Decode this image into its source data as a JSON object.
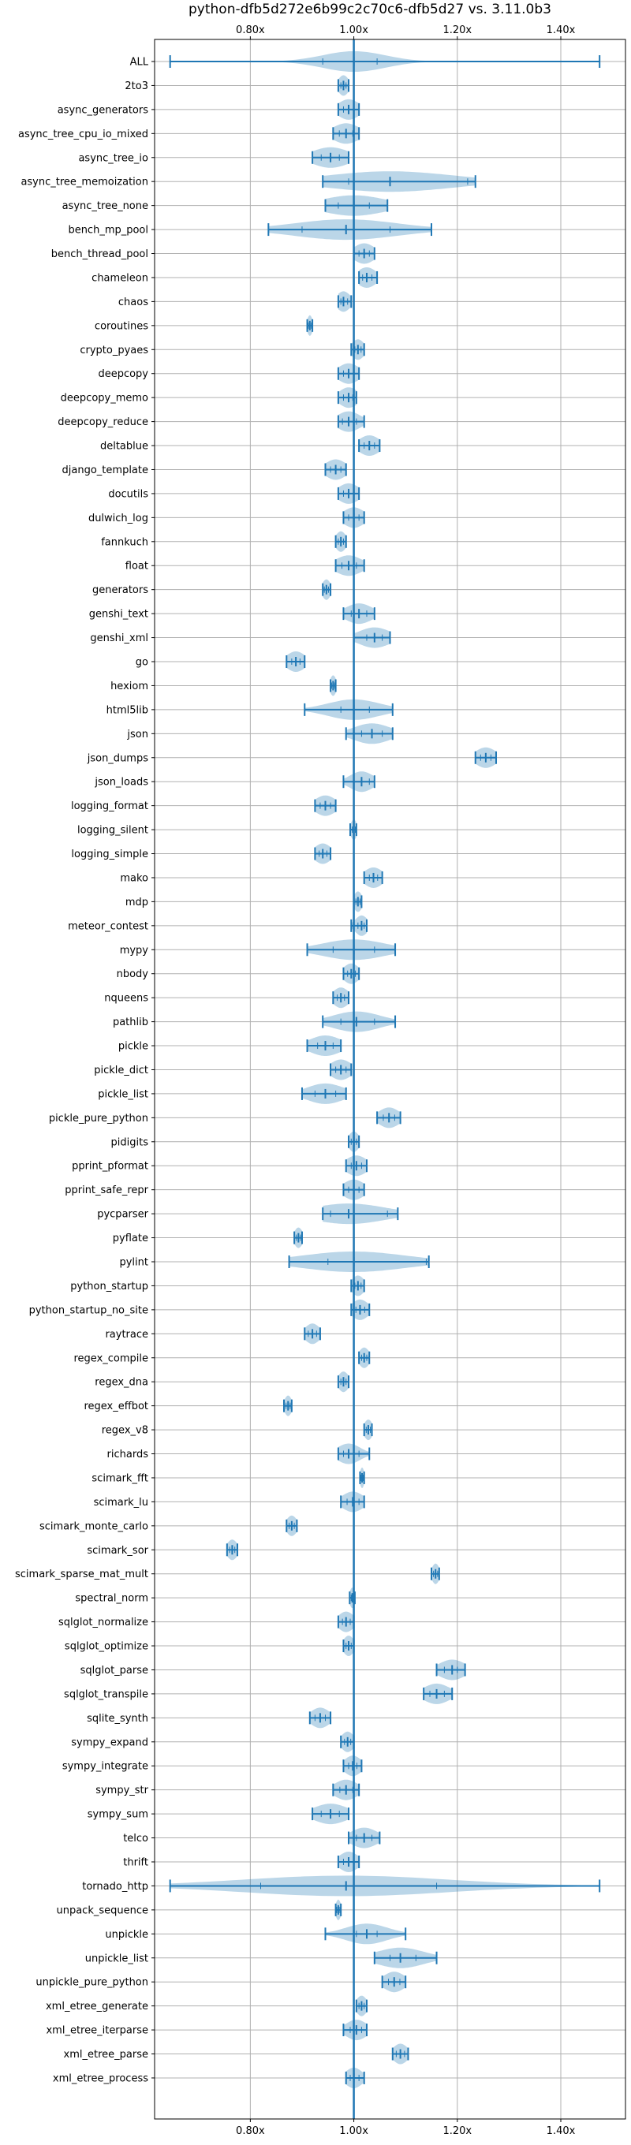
{
  "chart_data": {
    "type": "violin",
    "orientation": "horizontal",
    "title": "python-dfb5d272e6b99c2c70c6-dfb5d27 vs. 3.11.0b3",
    "x_ticks": [
      {
        "value": 0.8,
        "label": "0.80x"
      },
      {
        "value": 1.0,
        "label": "1.00x"
      },
      {
        "value": 1.2,
        "label": "1.20x"
      },
      {
        "value": 1.4,
        "label": "1.40x"
      }
    ],
    "xlim": [
      0.615,
      1.525
    ],
    "reference_x": 1.0,
    "grid": true,
    "benchmarks": [
      {
        "name": "ALL",
        "min": 0.645,
        "max": 1.475,
        "median": 1.0,
        "q1": 0.94,
        "q3": 1.045,
        "spread": 0.06
      },
      {
        "name": "2to3",
        "min": 0.97,
        "max": 0.99,
        "median": 0.98,
        "q1": 0.975,
        "q3": 0.985,
        "spread": 0.01
      },
      {
        "name": "async_generators",
        "min": 0.97,
        "max": 1.01,
        "median": 0.99,
        "q1": 0.98,
        "q3": 1.0,
        "spread": 0.02
      },
      {
        "name": "async_tree_cpu_io_mixed",
        "min": 0.96,
        "max": 1.01,
        "median": 0.985,
        "q1": 0.972,
        "q3": 0.998,
        "spread": 0.025
      },
      {
        "name": "async_tree_io",
        "min": 0.92,
        "max": 0.99,
        "median": 0.955,
        "q1": 0.937,
        "q3": 0.972,
        "spread": 0.035
      },
      {
        "name": "async_tree_memoization",
        "min": 0.94,
        "max": 1.235,
        "median": 1.07,
        "q1": 0.99,
        "q3": 1.22,
        "spread": 0.12
      },
      {
        "name": "async_tree_none",
        "min": 0.945,
        "max": 1.065,
        "median": 1.0,
        "q1": 0.97,
        "q3": 1.03,
        "spread": 0.06
      },
      {
        "name": "bench_mp_pool",
        "min": 0.835,
        "max": 1.15,
        "median": 0.985,
        "q1": 0.9,
        "q3": 1.07,
        "spread": 0.1
      },
      {
        "name": "bench_thread_pool",
        "min": 1.0,
        "max": 1.04,
        "median": 1.02,
        "q1": 1.01,
        "q3": 1.03,
        "spread": 0.02
      },
      {
        "name": "chameleon",
        "min": 1.01,
        "max": 1.045,
        "median": 1.025,
        "q1": 1.017,
        "q3": 1.035,
        "spread": 0.018
      },
      {
        "name": "chaos",
        "min": 0.97,
        "max": 0.995,
        "median": 0.98,
        "q1": 0.975,
        "q3": 0.988,
        "spread": 0.013
      },
      {
        "name": "coroutines",
        "min": 0.91,
        "max": 0.92,
        "median": 0.915,
        "q1": 0.912,
        "q3": 0.918,
        "spread": 0.005
      },
      {
        "name": "crypto_pyaes",
        "min": 0.995,
        "max": 1.02,
        "median": 1.008,
        "q1": 1.002,
        "q3": 1.014,
        "spread": 0.012
      },
      {
        "name": "deepcopy",
        "min": 0.97,
        "max": 1.01,
        "median": 0.99,
        "q1": 0.98,
        "q3": 1.0,
        "spread": 0.02
      },
      {
        "name": "deepcopy_memo",
        "min": 0.97,
        "max": 1.005,
        "median": 0.99,
        "q1": 0.98,
        "q3": 0.998,
        "spread": 0.018
      },
      {
        "name": "deepcopy_reduce",
        "min": 0.97,
        "max": 1.02,
        "median": 0.99,
        "q1": 0.978,
        "q3": 1.005,
        "spread": 0.022
      },
      {
        "name": "deltablue",
        "min": 1.01,
        "max": 1.05,
        "median": 1.03,
        "q1": 1.02,
        "q3": 1.04,
        "spread": 0.02
      },
      {
        "name": "django_template",
        "min": 0.945,
        "max": 0.985,
        "median": 0.965,
        "q1": 0.955,
        "q3": 0.975,
        "spread": 0.02
      },
      {
        "name": "docutils",
        "min": 0.97,
        "max": 1.01,
        "median": 0.99,
        "q1": 0.98,
        "q3": 1.0,
        "spread": 0.02
      },
      {
        "name": "dulwich_log",
        "min": 0.98,
        "max": 1.02,
        "median": 1.0,
        "q1": 0.99,
        "q3": 1.01,
        "spread": 0.02
      },
      {
        "name": "fannkuch",
        "min": 0.965,
        "max": 0.985,
        "median": 0.975,
        "q1": 0.97,
        "q3": 0.98,
        "spread": 0.01
      },
      {
        "name": "float",
        "min": 0.965,
        "max": 1.02,
        "median": 0.99,
        "q1": 0.977,
        "q3": 1.005,
        "spread": 0.025
      },
      {
        "name": "generators",
        "min": 0.94,
        "max": 0.955,
        "median": 0.947,
        "q1": 0.943,
        "q3": 0.951,
        "spread": 0.008
      },
      {
        "name": "genshi_text",
        "min": 0.98,
        "max": 1.04,
        "median": 1.01,
        "q1": 0.995,
        "q3": 1.025,
        "spread": 0.025
      },
      {
        "name": "genshi_xml",
        "min": 1.0,
        "max": 1.07,
        "median": 1.04,
        "q1": 1.025,
        "q3": 1.055,
        "spread": 0.03
      },
      {
        "name": "go",
        "min": 0.87,
        "max": 0.905,
        "median": 0.888,
        "q1": 0.88,
        "q3": 0.896,
        "spread": 0.018
      },
      {
        "name": "hexiom",
        "min": 0.955,
        "max": 0.965,
        "median": 0.96,
        "q1": 0.957,
        "q3": 0.963,
        "spread": 0.006
      },
      {
        "name": "html5lib",
        "min": 0.905,
        "max": 1.075,
        "median": 1.0,
        "q1": 0.975,
        "q3": 1.03,
        "spread": 0.05
      },
      {
        "name": "json",
        "min": 0.985,
        "max": 1.075,
        "median": 1.035,
        "q1": 1.015,
        "q3": 1.055,
        "spread": 0.035
      },
      {
        "name": "json_dumps",
        "min": 1.235,
        "max": 1.275,
        "median": 1.255,
        "q1": 1.245,
        "q3": 1.265,
        "spread": 0.02
      },
      {
        "name": "json_loads",
        "min": 0.98,
        "max": 1.04,
        "median": 1.015,
        "q1": 1.0,
        "q3": 1.03,
        "spread": 0.022
      },
      {
        "name": "logging_format",
        "min": 0.925,
        "max": 0.965,
        "median": 0.945,
        "q1": 0.935,
        "q3": 0.955,
        "spread": 0.02
      },
      {
        "name": "logging_silent",
        "min": 0.993,
        "max": 1.005,
        "median": 1.0,
        "q1": 0.997,
        "q3": 1.003,
        "spread": 0.006
      },
      {
        "name": "logging_simple",
        "min": 0.925,
        "max": 0.955,
        "median": 0.94,
        "q1": 0.933,
        "q3": 0.948,
        "spread": 0.016
      },
      {
        "name": "mako",
        "min": 1.02,
        "max": 1.055,
        "median": 1.038,
        "q1": 1.03,
        "q3": 1.046,
        "spread": 0.018
      },
      {
        "name": "mdp",
        "min": 1.0,
        "max": 1.015,
        "median": 1.008,
        "q1": 1.004,
        "q3": 1.012,
        "spread": 0.008
      },
      {
        "name": "meteor_contest",
        "min": 0.995,
        "max": 1.025,
        "median": 1.015,
        "q1": 1.008,
        "q3": 1.02,
        "spread": 0.012
      },
      {
        "name": "mypy",
        "min": 0.91,
        "max": 1.08,
        "median": 1.0,
        "q1": 0.96,
        "q3": 1.04,
        "spread": 0.06
      },
      {
        "name": "nbody",
        "min": 0.98,
        "max": 1.01,
        "median": 0.995,
        "q1": 0.988,
        "q3": 1.003,
        "spread": 0.015
      },
      {
        "name": "nqueens",
        "min": 0.96,
        "max": 0.99,
        "median": 0.975,
        "q1": 0.968,
        "q3": 0.982,
        "spread": 0.015
      },
      {
        "name": "pathlib",
        "min": 0.94,
        "max": 1.08,
        "median": 1.005,
        "q1": 0.975,
        "q3": 1.04,
        "spread": 0.045
      },
      {
        "name": "pickle",
        "min": 0.91,
        "max": 0.975,
        "median": 0.945,
        "q1": 0.93,
        "q3": 0.96,
        "spread": 0.03
      },
      {
        "name": "pickle_dict",
        "min": 0.955,
        "max": 0.995,
        "median": 0.975,
        "q1": 0.965,
        "q3": 0.985,
        "spread": 0.02
      },
      {
        "name": "pickle_list",
        "min": 0.9,
        "max": 0.985,
        "median": 0.945,
        "q1": 0.925,
        "q3": 0.965,
        "spread": 0.035
      },
      {
        "name": "pickle_pure_python",
        "min": 1.045,
        "max": 1.09,
        "median": 1.068,
        "q1": 1.057,
        "q3": 1.079,
        "spread": 0.02
      },
      {
        "name": "pidigits",
        "min": 0.99,
        "max": 1.01,
        "median": 1.0,
        "q1": 0.995,
        "q3": 1.005,
        "spread": 0.01
      },
      {
        "name": "pprint_pformat",
        "min": 0.985,
        "max": 1.025,
        "median": 1.005,
        "q1": 0.995,
        "q3": 1.015,
        "spread": 0.02
      },
      {
        "name": "pprint_safe_repr",
        "min": 0.98,
        "max": 1.02,
        "median": 1.0,
        "q1": 0.99,
        "q3": 1.01,
        "spread": 0.02
      },
      {
        "name": "pycparser",
        "min": 0.94,
        "max": 1.085,
        "median": 0.99,
        "q1": 0.955,
        "q3": 1.065,
        "spread": 0.07
      },
      {
        "name": "pyflate",
        "min": 0.885,
        "max": 0.9,
        "median": 0.893,
        "q1": 0.889,
        "q3": 0.897,
        "spread": 0.008
      },
      {
        "name": "pylint",
        "min": 0.875,
        "max": 1.145,
        "median": 1.0,
        "q1": 0.95,
        "q3": 1.14,
        "spread": 0.1
      },
      {
        "name": "python_startup",
        "min": 0.995,
        "max": 1.02,
        "median": 1.008,
        "q1": 1.002,
        "q3": 1.014,
        "spread": 0.012
      },
      {
        "name": "python_startup_no_site",
        "min": 0.995,
        "max": 1.03,
        "median": 1.012,
        "q1": 1.004,
        "q3": 1.021,
        "spread": 0.016
      },
      {
        "name": "raytrace",
        "min": 0.905,
        "max": 0.935,
        "median": 0.92,
        "q1": 0.912,
        "q3": 0.928,
        "spread": 0.014
      },
      {
        "name": "regex_compile",
        "min": 1.01,
        "max": 1.03,
        "median": 1.02,
        "q1": 1.015,
        "q3": 1.025,
        "spread": 0.01
      },
      {
        "name": "regex_dna",
        "min": 0.97,
        "max": 0.99,
        "median": 0.98,
        "q1": 0.975,
        "q3": 0.985,
        "spread": 0.01
      },
      {
        "name": "regex_effbot",
        "min": 0.865,
        "max": 0.88,
        "median": 0.873,
        "q1": 0.869,
        "q3": 0.877,
        "spread": 0.007
      },
      {
        "name": "regex_v8",
        "min": 1.02,
        "max": 1.035,
        "median": 1.028,
        "q1": 1.024,
        "q3": 1.032,
        "spread": 0.008
      },
      {
        "name": "richards",
        "min": 0.97,
        "max": 1.03,
        "median": 0.99,
        "q1": 0.98,
        "q3": 1.01,
        "spread": 0.022
      },
      {
        "name": "scimark_fft",
        "min": 1.012,
        "max": 1.02,
        "median": 1.016,
        "q1": 1.014,
        "q3": 1.018,
        "spread": 0.004
      },
      {
        "name": "scimark_lu",
        "min": 0.975,
        "max": 1.02,
        "median": 0.998,
        "q1": 0.987,
        "q3": 1.01,
        "spread": 0.02
      },
      {
        "name": "scimark_monte_carlo",
        "min": 0.87,
        "max": 0.89,
        "median": 0.88,
        "q1": 0.875,
        "q3": 0.885,
        "spread": 0.01
      },
      {
        "name": "scimark_sor",
        "min": 0.755,
        "max": 0.775,
        "median": 0.765,
        "q1": 0.76,
        "q3": 0.77,
        "spread": 0.01
      },
      {
        "name": "scimark_sparse_mat_mult",
        "min": 1.15,
        "max": 1.165,
        "median": 1.158,
        "q1": 1.154,
        "q3": 1.162,
        "spread": 0.007
      },
      {
        "name": "spectral_norm",
        "min": 0.992,
        "max": 1.002,
        "median": 0.997,
        "q1": 0.995,
        "q3": 0.999,
        "spread": 0.005
      },
      {
        "name": "sqlglot_normalize",
        "min": 0.97,
        "max": 1.0,
        "median": 0.985,
        "q1": 0.978,
        "q3": 0.993,
        "spread": 0.015
      },
      {
        "name": "sqlglot_optimize",
        "min": 0.98,
        "max": 1.0,
        "median": 0.99,
        "q1": 0.985,
        "q3": 0.995,
        "spread": 0.01
      },
      {
        "name": "sqlglot_parse",
        "min": 1.16,
        "max": 1.215,
        "median": 1.19,
        "q1": 1.175,
        "q3": 1.2,
        "spread": 0.025
      },
      {
        "name": "sqlglot_transpile",
        "min": 1.135,
        "max": 1.19,
        "median": 1.16,
        "q1": 1.147,
        "q3": 1.175,
        "spread": 0.025
      },
      {
        "name": "sqlite_synth",
        "min": 0.915,
        "max": 0.955,
        "median": 0.935,
        "q1": 0.925,
        "q3": 0.945,
        "spread": 0.018
      },
      {
        "name": "sympy_expand",
        "min": 0.975,
        "max": 1.0,
        "median": 0.988,
        "q1": 0.982,
        "q3": 0.994,
        "spread": 0.012
      },
      {
        "name": "sympy_integrate",
        "min": 0.98,
        "max": 1.015,
        "median": 0.998,
        "q1": 0.99,
        "q3": 1.006,
        "spread": 0.016
      },
      {
        "name": "sympy_str",
        "min": 0.96,
        "max": 1.01,
        "median": 0.985,
        "q1": 0.973,
        "q3": 0.998,
        "spread": 0.022
      },
      {
        "name": "sympy_sum",
        "min": 0.92,
        "max": 0.99,
        "median": 0.955,
        "q1": 0.937,
        "q3": 0.972,
        "spread": 0.032
      },
      {
        "name": "telco",
        "min": 0.99,
        "max": 1.05,
        "median": 1.02,
        "q1": 1.005,
        "q3": 1.035,
        "spread": 0.025
      },
      {
        "name": "thrift",
        "min": 0.97,
        "max": 1.01,
        "median": 0.99,
        "q1": 0.98,
        "q3": 1.0,
        "spread": 0.018
      },
      {
        "name": "tornado_http",
        "min": 0.645,
        "max": 1.475,
        "median": 0.985,
        "q1": 0.82,
        "q3": 1.16,
        "spread": 0.2
      },
      {
        "name": "unpack_sequence",
        "min": 0.965,
        "max": 0.975,
        "median": 0.97,
        "q1": 0.967,
        "q3": 0.973,
        "spread": 0.005
      },
      {
        "name": "unpickle",
        "min": 0.945,
        "max": 1.1,
        "median": 1.025,
        "q1": 1.005,
        "q3": 1.045,
        "spread": 0.04
      },
      {
        "name": "unpickle_list",
        "min": 1.04,
        "max": 1.16,
        "median": 1.09,
        "q1": 1.07,
        "q3": 1.12,
        "spread": 0.045
      },
      {
        "name": "unpickle_pure_python",
        "min": 1.055,
        "max": 1.1,
        "median": 1.078,
        "q1": 1.067,
        "q3": 1.089,
        "spread": 0.02
      },
      {
        "name": "xml_etree_generate",
        "min": 1.005,
        "max": 1.025,
        "median": 1.015,
        "q1": 1.01,
        "q3": 1.02,
        "spread": 0.01
      },
      {
        "name": "xml_etree_iterparse",
        "min": 0.98,
        "max": 1.025,
        "median": 1.005,
        "q1": 0.993,
        "q3": 1.015,
        "spread": 0.02
      },
      {
        "name": "xml_etree_parse",
        "min": 1.075,
        "max": 1.105,
        "median": 1.09,
        "q1": 1.082,
        "q3": 1.098,
        "spread": 0.014
      },
      {
        "name": "xml_etree_process",
        "min": 0.985,
        "max": 1.02,
        "median": 1.0,
        "q1": 0.993,
        "q3": 1.01,
        "spread": 0.016
      }
    ]
  },
  "colors": {
    "violin": "#1f77b4",
    "grid": "#b0b0b0",
    "frame": "#000000"
  }
}
